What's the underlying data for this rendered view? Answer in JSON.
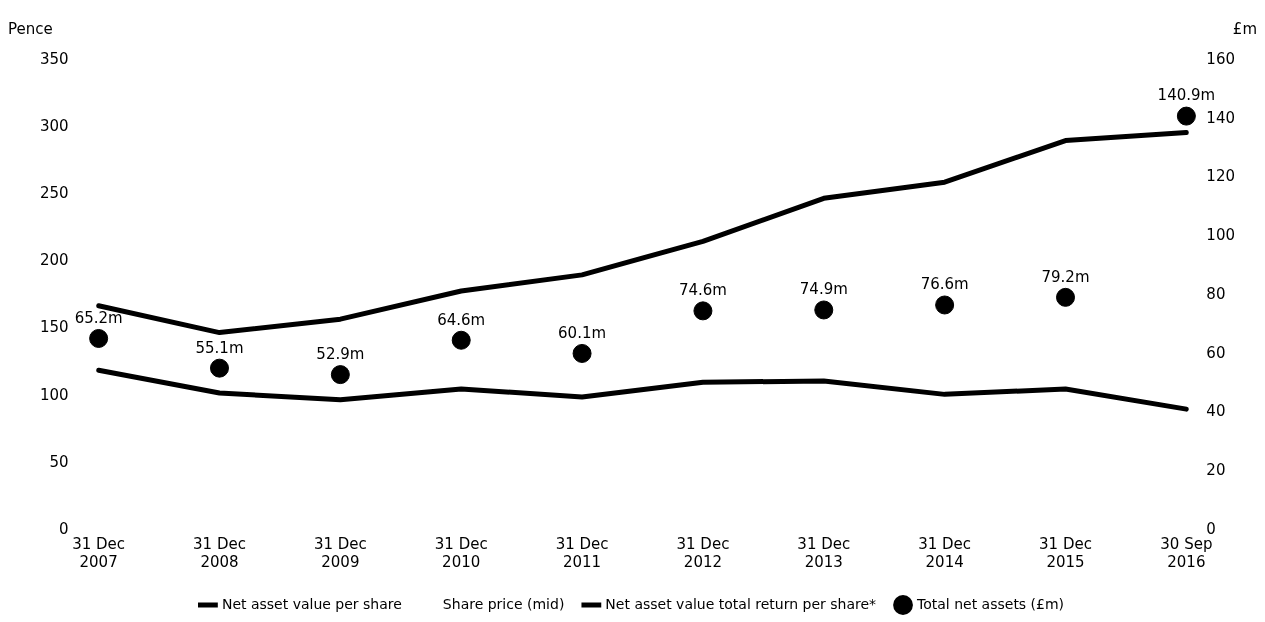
{
  "chart_data": {
    "type": "line",
    "ylabel": "Pence",
    "y2label": "£m",
    "categories": [
      "31 Dec 2007",
      "31 Dec 2008",
      "31 Dec 2009",
      "31 Dec 2010",
      "31 Dec 2011",
      "31 Dec 2012",
      "31 Dec 2013",
      "31 Dec 2014",
      "31 Dec 2015",
      "30 Sep 2016"
    ],
    "series": [
      {
        "name": "Net asset value per share",
        "color": "#000000",
        "values": [
          119,
          102,
          97,
          105,
          99,
          110,
          111,
          101,
          105,
          90
        ]
      },
      {
        "name": "Share price (mid)",
        "values": [
          null,
          null,
          null,
          null,
          null,
          null,
          null,
          null,
          null,
          null
        ]
      },
      {
        "name": "Net asset value total return per share*",
        "color": "#000000",
        "values": [
          167,
          147,
          157,
          178,
          190,
          215,
          247,
          259,
          290,
          296
        ]
      },
      {
        "name": "Total net assets (£m)",
        "type": "scatter",
        "axis": "y2",
        "color": "#000000",
        "marker": "circle",
        "values": [
          65.2,
          55.1,
          52.9,
          64.6,
          60.1,
          74.6,
          74.9,
          76.6,
          79.2,
          140.9
        ],
        "value_labels": [
          "65.2m",
          "55.1m",
          "52.9m",
          "64.6m",
          "60.1m",
          "74.6m",
          "74.9m",
          "76.6m",
          "79.2m",
          "140.9m"
        ]
      }
    ],
    "ylim": [
      0,
      350
    ],
    "yticks": [
      0,
      50,
      100,
      150,
      200,
      250,
      300,
      350
    ],
    "y2lim": [
      0,
      160
    ],
    "y2ticks": [
      0,
      20,
      40,
      60,
      80,
      100,
      120,
      140,
      160
    ],
    "grid": false,
    "legend": "bottom"
  }
}
